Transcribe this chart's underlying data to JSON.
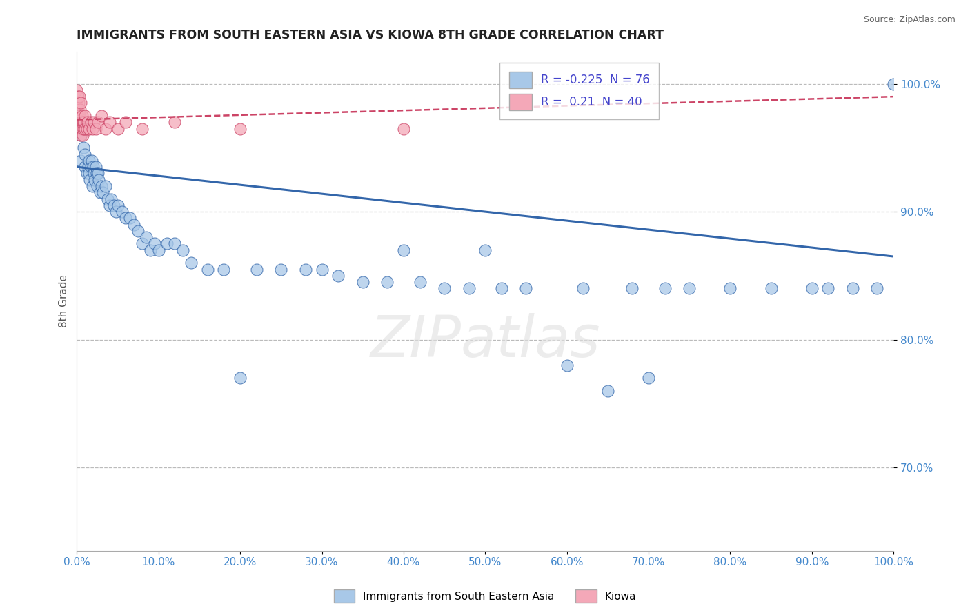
{
  "title": "IMMIGRANTS FROM SOUTH EASTERN ASIA VS KIOWA 8TH GRADE CORRELATION CHART",
  "source": "Source: ZipAtlas.com",
  "xlabel_bottom": "Immigrants from South Eastern Asia",
  "xlabel_right": "Kiowa",
  "ylabel": "8th Grade",
  "x_min": 0.0,
  "x_max": 1.0,
  "y_min": 0.635,
  "y_max": 1.025,
  "blue_R": -0.225,
  "blue_N": 76,
  "pink_R": 0.21,
  "pink_N": 40,
  "blue_color": "#a8c8e8",
  "pink_color": "#f4a8b8",
  "blue_line_color": "#3366aa",
  "pink_line_color": "#cc4466",
  "grid_color": "#bbbbbb",
  "watermark": "ZIPatlas",
  "ytick_vals": [
    0.7,
    0.8,
    0.9,
    1.0
  ],
  "ytick_labels": [
    "70.0%",
    "80.0%",
    "90.0%",
    "100.0%"
  ],
  "xtick_vals": [
    0.0,
    0.1,
    0.2,
    0.3,
    0.4,
    0.5,
    0.6,
    0.7,
    0.8,
    0.9,
    1.0
  ],
  "xtick_labels": [
    "0.0%",
    "10.0%",
    "20.0%",
    "30.0%",
    "40.0%",
    "50.0%",
    "60.0%",
    "70.0%",
    "80.0%",
    "90.0%",
    "100.0%"
  ],
  "blue_trend_x": [
    0.0,
    1.0
  ],
  "blue_trend_y": [
    0.935,
    0.865
  ],
  "pink_trend_x": [
    0.0,
    1.0
  ],
  "pink_trend_y": [
    0.972,
    0.99
  ],
  "blue_x": [
    0.005,
    0.005,
    0.008,
    0.01,
    0.01,
    0.012,
    0.014,
    0.015,
    0.015,
    0.016,
    0.017,
    0.018,
    0.019,
    0.02,
    0.021,
    0.022,
    0.023,
    0.024,
    0.025,
    0.026,
    0.027,
    0.028,
    0.03,
    0.032,
    0.035,
    0.038,
    0.04,
    0.042,
    0.045,
    0.048,
    0.05,
    0.055,
    0.06,
    0.065,
    0.07,
    0.075,
    0.08,
    0.085,
    0.09,
    0.095,
    0.1,
    0.11,
    0.12,
    0.13,
    0.14,
    0.16,
    0.18,
    0.2,
    0.22,
    0.25,
    0.28,
    0.3,
    0.32,
    0.35,
    0.38,
    0.4,
    0.42,
    0.45,
    0.48,
    0.5,
    0.52,
    0.55,
    0.6,
    0.62,
    0.65,
    0.68,
    0.7,
    0.72,
    0.75,
    0.8,
    0.85,
    0.9,
    0.92,
    0.95,
    0.98,
    1.0
  ],
  "blue_y": [
    0.96,
    0.94,
    0.95,
    0.935,
    0.945,
    0.93,
    0.935,
    0.94,
    0.93,
    0.925,
    0.935,
    0.94,
    0.92,
    0.935,
    0.93,
    0.925,
    0.935,
    0.93,
    0.92,
    0.93,
    0.925,
    0.915,
    0.92,
    0.915,
    0.92,
    0.91,
    0.905,
    0.91,
    0.905,
    0.9,
    0.905,
    0.9,
    0.895,
    0.895,
    0.89,
    0.885,
    0.875,
    0.88,
    0.87,
    0.875,
    0.87,
    0.875,
    0.875,
    0.87,
    0.86,
    0.855,
    0.855,
    0.77,
    0.855,
    0.855,
    0.855,
    0.855,
    0.85,
    0.845,
    0.845,
    0.87,
    0.845,
    0.84,
    0.84,
    0.87,
    0.84,
    0.84,
    0.78,
    0.84,
    0.76,
    0.84,
    0.77,
    0.84,
    0.84,
    0.84,
    0.84,
    0.84,
    0.84,
    0.84,
    0.84,
    1.0
  ],
  "pink_x": [
    0.0,
    0.0,
    0.001,
    0.001,
    0.002,
    0.002,
    0.003,
    0.003,
    0.003,
    0.004,
    0.004,
    0.005,
    0.005,
    0.005,
    0.006,
    0.006,
    0.007,
    0.007,
    0.008,
    0.008,
    0.009,
    0.01,
    0.01,
    0.012,
    0.013,
    0.015,
    0.017,
    0.019,
    0.021,
    0.023,
    0.026,
    0.03,
    0.035,
    0.04,
    0.05,
    0.06,
    0.08,
    0.12,
    0.2,
    0.4
  ],
  "pink_y": [
    0.995,
    0.985,
    0.99,
    0.98,
    0.985,
    0.975,
    0.99,
    0.975,
    0.965,
    0.98,
    0.97,
    0.985,
    0.97,
    0.96,
    0.975,
    0.965,
    0.97,
    0.96,
    0.97,
    0.965,
    0.97,
    0.965,
    0.975,
    0.965,
    0.97,
    0.965,
    0.97,
    0.965,
    0.97,
    0.965,
    0.97,
    0.975,
    0.965,
    0.97,
    0.965,
    0.97,
    0.965,
    0.97,
    0.965,
    0.965
  ]
}
